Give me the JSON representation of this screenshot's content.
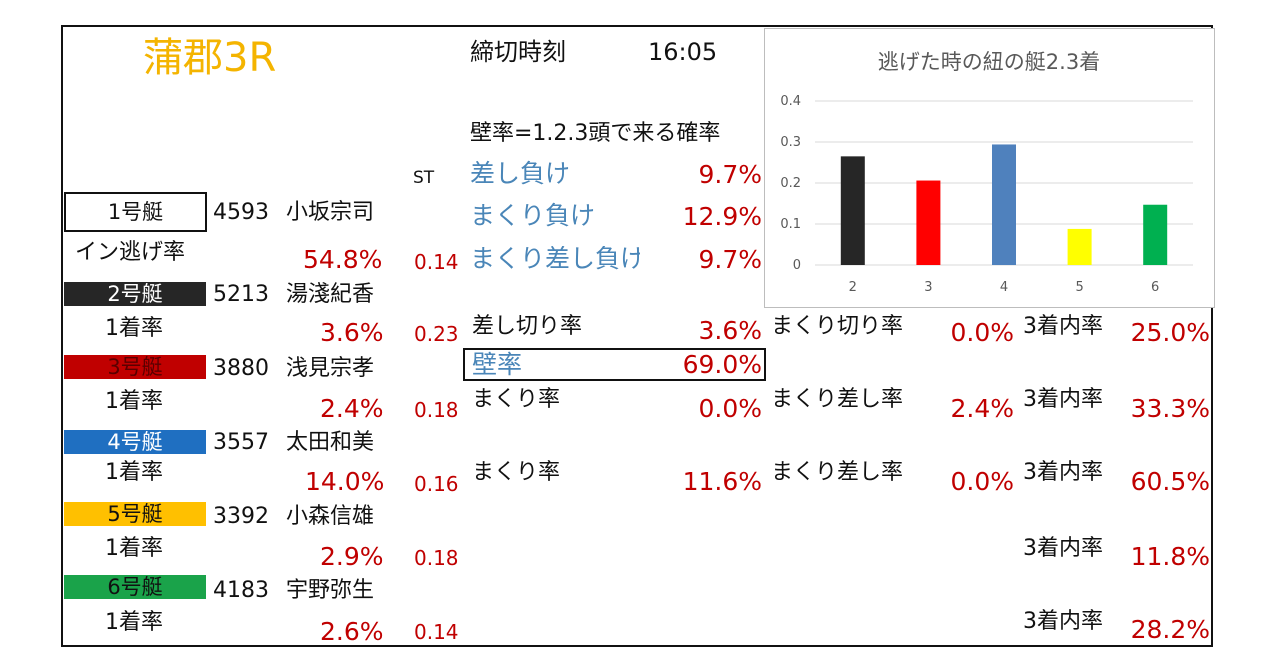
{
  "header": {
    "race": "蒲郡3R",
    "deadline_label": "締切時刻",
    "deadline_time": "16:05",
    "kabe_title": "壁率=1.2.3頭で来る確率",
    "st_label": "ST"
  },
  "colors": {
    "race_title": "#f4b400",
    "value_red": "#c00000",
    "label_blue": "#4a86b8"
  },
  "boats": [
    {
      "label": "1号艇",
      "color": "#ffffff",
      "text_color": "#111111",
      "id": "4593",
      "name": "小坂宗司",
      "rate_label": "イン逃げ率",
      "rate": "54.8%",
      "st": "0.14"
    },
    {
      "label": "2号艇",
      "color": "#262626",
      "text_color": "#ffffff",
      "id": "5213",
      "name": "湯淺紀香",
      "rate_label": "1着率",
      "rate": "3.6%",
      "st": "0.23"
    },
    {
      "label": "3号艇",
      "color": "#c00000",
      "text_color": "#5a0000",
      "id": "3880",
      "name": "浅見宗孝",
      "rate_label": "1着率",
      "rate": "2.4%",
      "st": "0.18"
    },
    {
      "label": "4号艇",
      "color": "#1f6fc1",
      "text_color": "#ffffff",
      "id": "3557",
      "name": "太田和美",
      "rate_label": "1着率",
      "rate": "14.0%",
      "st": "0.16"
    },
    {
      "label": "5号艇",
      "color": "#ffc000",
      "text_color": "#111111",
      "id": "3392",
      "name": "小森信雄",
      "rate_label": "1着率",
      "rate": "2.9%",
      "st": "0.18"
    },
    {
      "label": "6号艇",
      "color": "#1aa34a",
      "text_color": "#111111",
      "id": "4183",
      "name": "宇野弥生",
      "rate_label": "1着率",
      "rate": "2.6%",
      "st": "0.14"
    }
  ],
  "escape_loss": [
    {
      "label": "差し負け",
      "value": "9.7%"
    },
    {
      "label": "まくり負け",
      "value": "12.9%"
    },
    {
      "label": "まくり差し負け",
      "value": "9.7%"
    }
  ],
  "boat2_stats": {
    "sashi_label": "差し切り率",
    "sashi": "3.6%",
    "makuri_label": "まくり切り率",
    "makuri": "0.0%",
    "top3_label": "3着内率",
    "top3": "25.0%"
  },
  "kabe": {
    "label": "壁率",
    "value": "69.0%"
  },
  "boat3_stats": {
    "makuri_label": "まくり率",
    "makuri": "0.0%",
    "makuri_sashi_label": "まくり差し率",
    "makuri_sashi": "2.4%",
    "top3_label": "3着内率",
    "top3": "33.3%"
  },
  "boat4_stats": {
    "makuri_label": "まくり率",
    "makuri": "11.6%",
    "makuri_sashi_label": "まくり差し率",
    "makuri_sashi": "0.0%",
    "top3_label": "3着内率",
    "top3": "60.5%"
  },
  "boat5_stats": {
    "top3_label": "3着内率",
    "top3": "11.8%"
  },
  "boat6_stats": {
    "top3_label": "3着内率",
    "top3": "28.2%"
  },
  "chart_data": {
    "type": "bar",
    "title": "逃げた時の紐の艇2.3着",
    "categories": [
      "2",
      "3",
      "4",
      "5",
      "6"
    ],
    "values": [
      0.265,
      0.206,
      0.294,
      0.088,
      0.147
    ],
    "colors": [
      "#262626",
      "#ff0000",
      "#4f81bd",
      "#ffff00",
      "#00b050"
    ],
    "ylim": [
      0,
      0.4
    ],
    "yticks": [
      "0",
      "0.1",
      "0.2",
      "0.3",
      "0.4"
    ],
    "grid": true,
    "legend": "none"
  }
}
